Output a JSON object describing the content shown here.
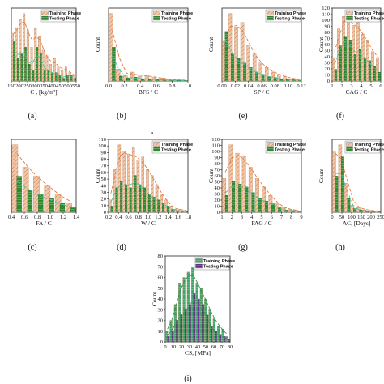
{
  "colors": {
    "training_fill": "#f1c9a9",
    "training_hatch": "#c9835a",
    "testing_fill": "#2d8a2d",
    "testing_hatch": "#ffffff",
    "training_fit": "#e07a3a",
    "testing_fit": "#3ec4a6",
    "cs_training_fill": "#3fa56a",
    "cs_testing_fill": "#6a2d8f"
  },
  "chart_data": [
    {
      "id": "a",
      "caption": "(a)",
      "type": "bar",
      "xlabel": "C , [kg/m³]",
      "ylabel": "",
      "xticks": [
        "150",
        "200",
        "250",
        "300",
        "350",
        "400",
        "450",
        "500",
        "550"
      ],
      "legend": [
        "Training Phase",
        "Testing Phase"
      ],
      "categories": [
        "150",
        "175",
        "200",
        "225",
        "250",
        "275",
        "300",
        "325",
        "350",
        "375",
        "400",
        "425",
        "450",
        "475",
        "500",
        "525",
        "550"
      ],
      "series": [
        {
          "name": "Training Phase",
          "values": [
            85,
            95,
            110,
            120,
            90,
            60,
            95,
            80,
            55,
            45,
            30,
            40,
            25,
            20,
            25,
            15,
            10
          ]
        },
        {
          "name": "Testing Phase",
          "values": [
            70,
            40,
            50,
            60,
            30,
            20,
            60,
            50,
            20,
            20,
            15,
            15,
            10,
            5,
            10,
            10,
            5
          ]
        }
      ]
    },
    {
      "id": "b",
      "caption": "(b)",
      "type": "bar",
      "xlabel": "BFS / C",
      "ylabel": "Count",
      "xticks": [
        "0.0",
        "0.2",
        "0.4",
        "0.6",
        "0.8",
        "1.0"
      ],
      "legend": [
        "Training Phase",
        "Testing Phase"
      ],
      "categories": [
        "0.0",
        "0.1",
        "0.2",
        "0.3",
        "0.4",
        "0.5",
        "0.6",
        "0.7",
        "0.8",
        "0.9",
        "1.0"
      ],
      "series": [
        {
          "name": "Training Phase",
          "values": [
            340,
            60,
            30,
            45,
            25,
            30,
            20,
            15,
            10,
            5,
            5
          ]
        },
        {
          "name": "Testing Phase",
          "values": [
            170,
            25,
            15,
            20,
            10,
            12,
            8,
            6,
            5,
            3,
            2
          ]
        }
      ]
    },
    {
      "id": "e",
      "caption": "(e)",
      "type": "bar",
      "xlabel": "SP / C",
      "ylabel": "Count",
      "xticks": [
        "0.00",
        "0.02",
        "0.04",
        "0.06",
        "0.08",
        "0.10",
        "0.12"
      ],
      "legend": [
        "Training Phase",
        "Testing Phase"
      ],
      "categories": [
        "0.00",
        "0.01",
        "0.02",
        "0.03",
        "0.04",
        "0.05",
        "0.06",
        "0.07",
        "0.08",
        "0.09",
        "0.10",
        "0.11",
        "0.12"
      ],
      "series": [
        {
          "name": "Training Phase",
          "values": [
            90,
            150,
            120,
            130,
            80,
            60,
            40,
            30,
            20,
            15,
            10,
            5,
            5
          ]
        },
        {
          "name": "Testing Phase",
          "values": [
            110,
            60,
            50,
            40,
            30,
            20,
            15,
            10,
            8,
            5,
            5,
            3,
            2
          ]
        }
      ]
    },
    {
      "id": "f",
      "caption": "(f)",
      "type": "bar",
      "xlabel": "CAG / C",
      "ylabel": "Count",
      "xticks": [
        "1",
        "2",
        "3",
        "4",
        "5",
        "6"
      ],
      "yticks": [
        "0",
        "10",
        "20",
        "30",
        "40",
        "50",
        "60",
        "70",
        "80",
        "90",
        "100",
        "110",
        "120"
      ],
      "legend": [
        "Training Phase",
        "Testing Phase"
      ],
      "categories": [
        "1.5",
        "2.0",
        "2.5",
        "3.0",
        "3.5",
        "4.0",
        "4.5",
        "5.0",
        "5.5",
        "6.0"
      ],
      "series": [
        {
          "name": "Training Phase",
          "values": [
            40,
            90,
            110,
            115,
            95,
            100,
            80,
            70,
            50,
            40
          ]
        },
        {
          "name": "Testing Phase",
          "values": [
            20,
            60,
            75,
            70,
            45,
            55,
            40,
            35,
            25,
            15
          ]
        }
      ]
    },
    {
      "id": "c",
      "caption": "(c)",
      "type": "bar",
      "xlabel": "FA / C",
      "ylabel": "",
      "xticks": [
        "0.4",
        "0.6",
        "0.8",
        "1.0",
        "1.2",
        "1.4"
      ],
      "legend": [],
      "categories": [
        "0.4",
        "0.6",
        "0.8",
        "1.0",
        "1.2",
        "1.4"
      ],
      "series": [
        {
          "name": "Training Phase",
          "values": [
            15,
            10,
            8,
            6,
            4,
            2
          ]
        },
        {
          "name": "Testing Phase",
          "values": [
            8,
            5,
            4,
            3,
            2,
            1
          ]
        }
      ]
    },
    {
      "id": "d",
      "caption": "(d)",
      "type": "bar",
      "xlabel": "W / C",
      "ylabel": "Count",
      "top_label": "a",
      "xticks": [
        "0.2",
        "0.4",
        "0.6",
        "0.8",
        "1.0",
        "1.2",
        "1.4",
        "1.6",
        "1.8"
      ],
      "yticks": [
        "0",
        "10",
        "20",
        "30",
        "40",
        "50",
        "60",
        "70",
        "80",
        "90",
        "100",
        "110"
      ],
      "legend": [
        "Training Phase",
        "Testing Phase"
      ],
      "categories": [
        "0.30",
        "0.35",
        "0.40",
        "0.45",
        "0.50",
        "0.55",
        "0.60",
        "0.65",
        "0.70",
        "0.75",
        "0.80",
        "0.85",
        "0.90",
        "1.00",
        "1.20",
        "1.40",
        "1.60"
      ],
      "series": [
        {
          "name": "Training Phase",
          "values": [
            20,
            70,
            110,
            100,
            95,
            105,
            85,
            90,
            70,
            60,
            45,
            30,
            20,
            10,
            5,
            5,
            3
          ]
        },
        {
          "name": "Testing Phase",
          "values": [
            10,
            40,
            50,
            45,
            40,
            60,
            45,
            40,
            30,
            25,
            20,
            15,
            10,
            5,
            3,
            2,
            1
          ]
        }
      ]
    },
    {
      "id": "g",
      "caption": "(g)",
      "type": "bar",
      "xlabel": "FAG / C",
      "ylabel": "Count",
      "xticks": [
        "1",
        "2",
        "3",
        "4",
        "5",
        "6",
        "7",
        "8",
        "9"
      ],
      "yticks": [
        "0",
        "10",
        "20",
        "30",
        "40",
        "50",
        "60",
        "70",
        "80",
        "90",
        "100",
        "110",
        "120"
      ],
      "legend": [
        "Training Phase",
        "Testing Phase"
      ],
      "categories": [
        "1.5",
        "2.0",
        "2.5",
        "3.0",
        "3.5",
        "4.0",
        "4.5",
        "5.0",
        "6.0",
        "7.0",
        "8.0",
        "9.0"
      ],
      "series": [
        {
          "name": "Training Phase",
          "values": [
            60,
            120,
            105,
            100,
            80,
            60,
            45,
            30,
            15,
            8,
            5,
            3
          ]
        },
        {
          "name": "Testing Phase",
          "values": [
            30,
            55,
            50,
            45,
            35,
            25,
            20,
            15,
            8,
            4,
            3,
            2
          ]
        }
      ]
    },
    {
      "id": "h",
      "caption": "(h)",
      "type": "bar",
      "xlabel": "AC, [Days]",
      "ylabel": "Count",
      "xticks": [
        "0",
        "50",
        "100",
        "150",
        "200",
        "250"
      ],
      "legend": [
        "Training Phase",
        "Testing Phase"
      ],
      "categories": [
        "7",
        "14",
        "28",
        "56",
        "90",
        "120",
        "180",
        "270"
      ],
      "series": [
        {
          "name": "Training Phase",
          "values": [
            250,
            280,
            120,
            30,
            20,
            10,
            8,
            5
          ]
        },
        {
          "name": "Testing Phase",
          "values": [
            150,
            230,
            60,
            15,
            10,
            5,
            4,
            2
          ]
        }
      ]
    },
    {
      "id": "i",
      "caption": "(i)",
      "type": "bar",
      "xlabel": "CS, [MPa]",
      "ylabel": "Count",
      "xticks": [
        "0",
        "10",
        "20",
        "30",
        "40",
        "50",
        "60",
        "70",
        "80"
      ],
      "yticks": [
        "0",
        "10",
        "20",
        "30",
        "40",
        "50",
        "60",
        "70",
        "80"
      ],
      "ylim": [
        0,
        80
      ],
      "legend": [
        "Training Phase",
        "Testing Phase"
      ],
      "categories": [
        "5",
        "10",
        "15",
        "20",
        "25",
        "30",
        "35",
        "40",
        "45",
        "50",
        "55",
        "60",
        "65",
        "70",
        "75"
      ],
      "series": [
        {
          "name": "Training Phase",
          "values": [
            10,
            20,
            35,
            55,
            60,
            65,
            70,
            55,
            50,
            40,
            30,
            22,
            15,
            12,
            5
          ]
        },
        {
          "name": "Testing Phase",
          "values": [
            5,
            10,
            20,
            25,
            30,
            35,
            45,
            40,
            35,
            25,
            15,
            10,
            7,
            5,
            2
          ]
        }
      ]
    }
  ]
}
